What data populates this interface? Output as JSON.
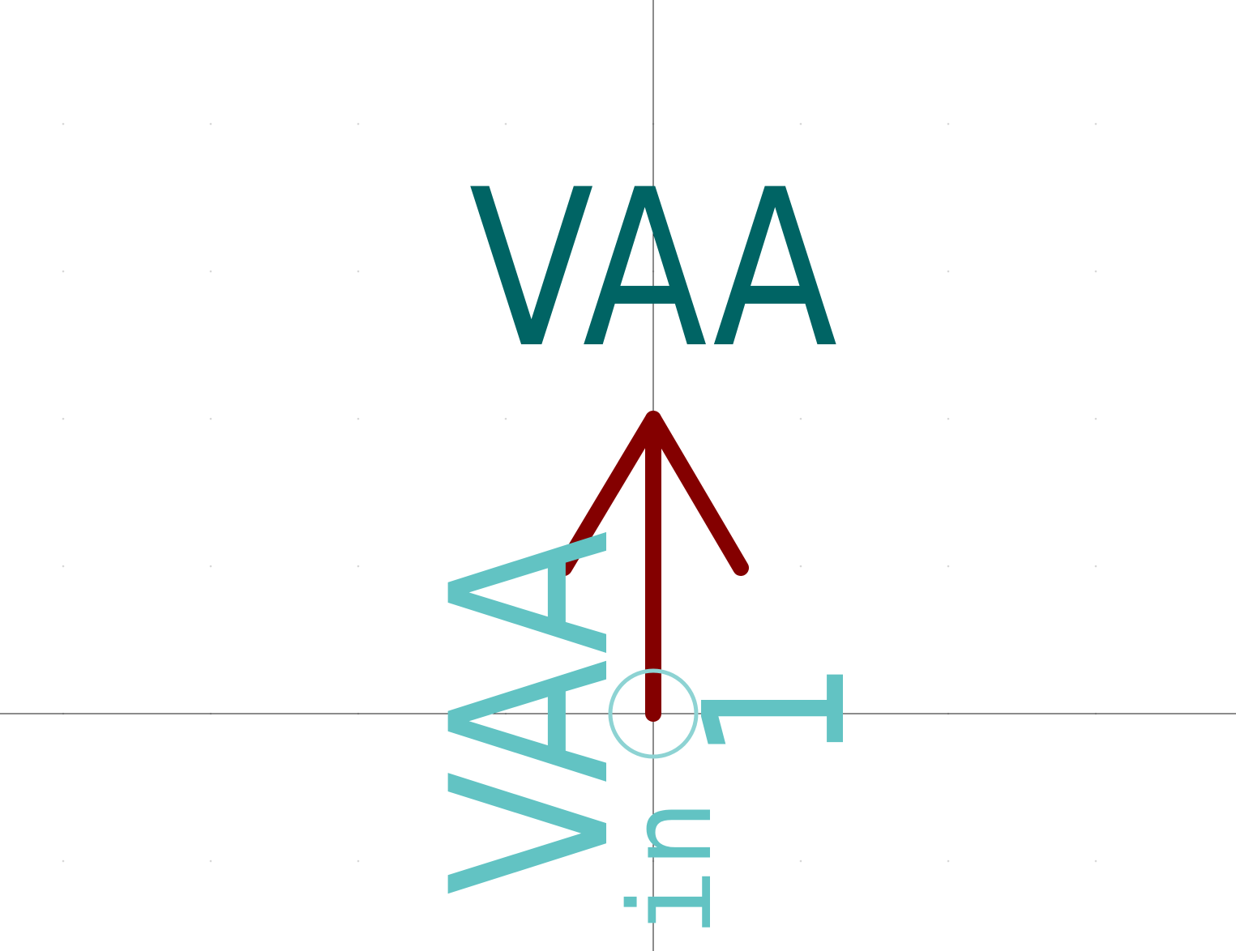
{
  "symbol": {
    "value_label": "VAA",
    "pin_name": "VAA",
    "pin_number": "1",
    "pin_type": "in"
  },
  "colors": {
    "background": "#ffffff",
    "crosshair": "#1a1a1a",
    "grid_dot": "#d8d8d8",
    "value_text": "#006464",
    "power_symbol": "#840000",
    "pin_text": "#62c3c3",
    "pin_marker": "#8dd3d3"
  },
  "view": {
    "grid_visible": true,
    "crosshair_visible": true
  }
}
